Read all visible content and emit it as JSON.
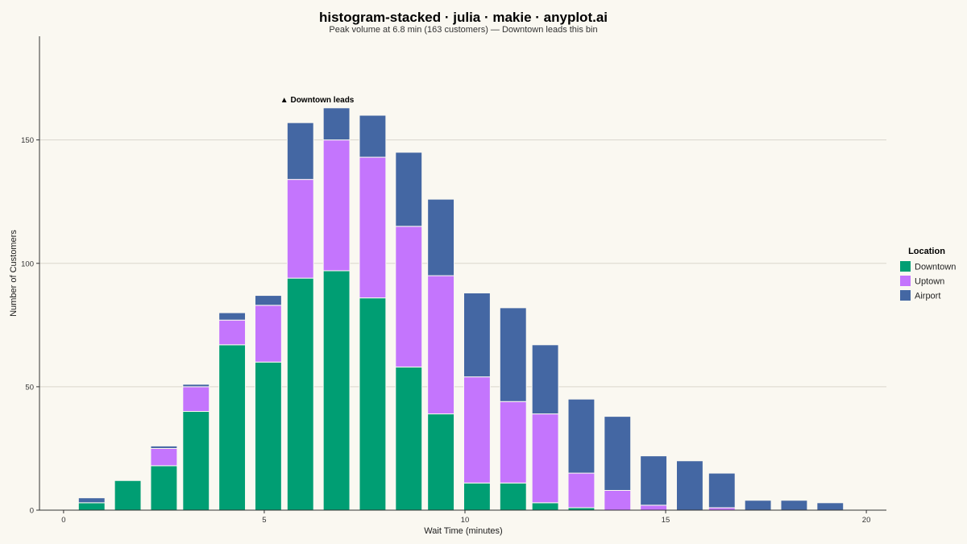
{
  "chart_data": {
    "type": "bar",
    "stacked": true,
    "title": "histogram-stacked · julia · makie · anyplot.ai",
    "subtitle": "Peak volume at 6.8 min (163 customers) — Downtown leads this bin",
    "xlabel": "Wait Time (minutes)",
    "ylabel": "Number of Customers",
    "xlim": [
      -0.6,
      20.5
    ],
    "ylim": [
      0,
      192
    ],
    "xticks": [
      0,
      5,
      10,
      15,
      20
    ],
    "yticks": [
      0,
      50,
      100,
      150
    ],
    "grid": true,
    "legend_title": "Location",
    "legend_position": "right",
    "bin_width": 0.88,
    "x": [
      0.7,
      1.6,
      2.5,
      3.3,
      4.2,
      5.1,
      5.9,
      6.8,
      7.7,
      8.6,
      9.4,
      10.3,
      11.2,
      12.0,
      12.9,
      13.8,
      14.7,
      15.6,
      16.4,
      17.3,
      18.2,
      19.1
    ],
    "series": [
      {
        "name": "Downtown",
        "color": "#009E73",
        "values": [
          3,
          12,
          18,
          40,
          67,
          60,
          94,
          97,
          86,
          58,
          39,
          11,
          11,
          3,
          1,
          0,
          0,
          0,
          0,
          0,
          0,
          0
        ]
      },
      {
        "name": "Uptown",
        "color": "#C475FD",
        "values": [
          0,
          0,
          7,
          10,
          10,
          23,
          40,
          53,
          57,
          57,
          56,
          43,
          33,
          36,
          14,
          8,
          2,
          0,
          1,
          0,
          0,
          0
        ]
      },
      {
        "name": "Airport",
        "color": "#4467A3",
        "values": [
          2,
          0,
          1,
          1,
          3,
          4,
          23,
          13,
          17,
          30,
          31,
          34,
          38,
          28,
          30,
          30,
          20,
          20,
          14,
          4,
          4,
          3
        ]
      }
    ],
    "annotation": {
      "text": "▲ Downtown leads",
      "x": 6.8,
      "y": 163
    }
  }
}
